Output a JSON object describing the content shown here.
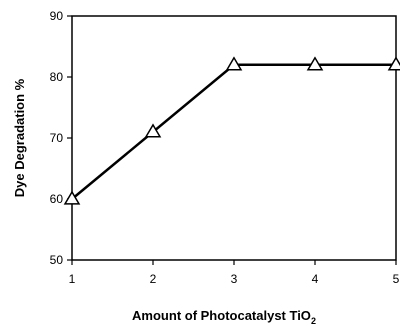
{
  "chart_data": {
    "type": "line",
    "title": "",
    "xlabel": "Amount of Photocatalyst TiO",
    "xlabel_subscript": "2",
    "ylabel": "Dye Degradation %",
    "xlim": [
      1,
      5
    ],
    "ylim": [
      50,
      90
    ],
    "x_ticks": [
      "1",
      "2",
      "3",
      "4",
      "5"
    ],
    "y_ticks": [
      "50",
      "60",
      "70",
      "80",
      "90"
    ],
    "grid": false,
    "series": [
      {
        "x": [
          1,
          2,
          3,
          4,
          5
        ],
        "y": [
          60,
          71,
          82,
          82,
          82
        ],
        "marker": "open-triangle",
        "color": "#000000"
      }
    ]
  }
}
